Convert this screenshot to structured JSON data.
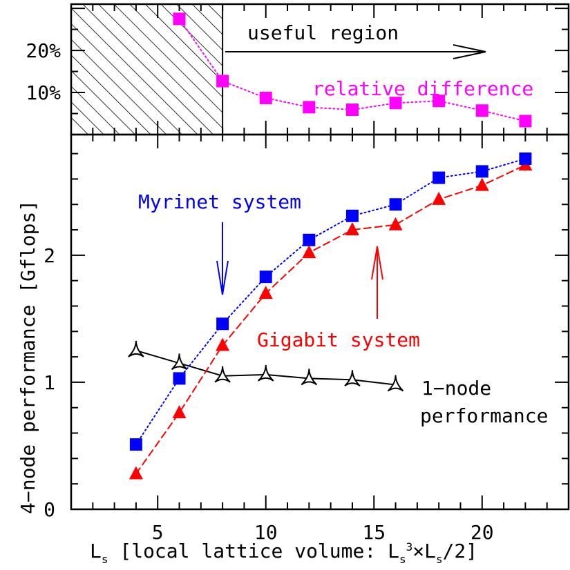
{
  "chart_data": [
    {
      "type": "line",
      "panel": "top",
      "ytick_labels": [
        "10%",
        "20%"
      ],
      "ytick_values": [
        10,
        20
      ],
      "ylim": [
        0,
        31
      ],
      "xlim": [
        1,
        24
      ],
      "series": [
        {
          "name": "relative difference",
          "color": "#ff00ff",
          "marker": "square",
          "line": "dotted",
          "points": [
            [
              6,
              27.5
            ],
            [
              8,
              12.7
            ],
            [
              10,
              8.7
            ],
            [
              12,
              6.5
            ],
            [
              14,
              5.9
            ],
            [
              16,
              7.5
            ],
            [
              18,
              8.0
            ],
            [
              20,
              5.7
            ],
            [
              22,
              3.2
            ]
          ]
        }
      ],
      "annotations": {
        "useful_region": "useful region"
      },
      "hatched_region": [
        1,
        8
      ]
    },
    {
      "type": "line",
      "panel": "main",
      "xlabel_main": "L",
      "xlabel_sub": "s",
      "xlabel_rest": " [local lattice volume: L",
      "xlabel_sub2": "s",
      "xlabel_sup": "3",
      "xlabel_tail": "×L",
      "xlabel_sub3": "s",
      "xlabel_end": "/2]",
      "ylabel": "4−node performance [Gflops]",
      "xlim": [
        1,
        24
      ],
      "ylim": [
        0,
        2.95
      ],
      "xticks": [
        5,
        10,
        15,
        20
      ],
      "xtick_labels": [
        "5",
        "10",
        "15",
        "20"
      ],
      "yticks": [
        0,
        1,
        2
      ],
      "ytick_labels": [
        "0",
        "1",
        "2"
      ],
      "series": [
        {
          "name": "Myrinet system",
          "color": "#0000ff",
          "marker": "square",
          "line": "dotted",
          "points": [
            [
              4,
              0.51
            ],
            [
              6,
              1.03
            ],
            [
              8,
              1.46
            ],
            [
              10,
              1.83
            ],
            [
              12,
              2.12
            ],
            [
              14,
              2.31
            ],
            [
              16,
              2.4
            ],
            [
              18,
              2.61
            ],
            [
              20,
              2.66
            ],
            [
              22,
              2.76
            ]
          ]
        },
        {
          "name": "Gigabit system",
          "color": "#ff0000",
          "marker": "triangle",
          "line": "dashed",
          "points": [
            [
              4,
              0.28
            ],
            [
              6,
              0.76
            ],
            [
              8,
              1.29
            ],
            [
              10,
              1.7
            ],
            [
              12,
              2.02
            ],
            [
              14,
              2.2
            ],
            [
              16,
              2.24
            ],
            [
              18,
              2.44
            ],
            [
              20,
              2.55
            ],
            [
              22,
              2.71
            ]
          ]
        },
        {
          "name": "1-node performance",
          "color": "#000000",
          "marker": "open-triangle",
          "line": "solid",
          "points": [
            [
              4,
              1.25
            ],
            [
              6,
              1.15
            ],
            [
              8,
              1.05
            ],
            [
              10,
              1.06
            ],
            [
              12,
              1.03
            ],
            [
              14,
              1.02
            ],
            [
              16,
              0.98
            ]
          ]
        }
      ],
      "annotations": {
        "myrinet_label": "Myrinet system",
        "gigabit_label": "Gigabit system",
        "onenode_line1": "1−node",
        "onenode_line2": "performance"
      }
    }
  ]
}
